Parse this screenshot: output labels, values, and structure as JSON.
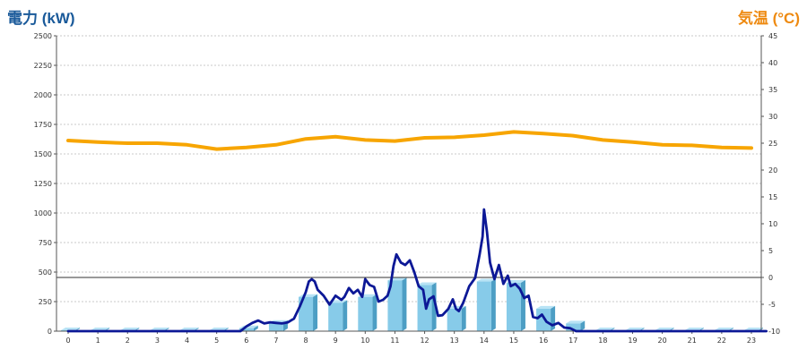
{
  "chart_data": {
    "type": "bar+line",
    "title_left": "電力 (kW)",
    "title_right": "気温 (°C)",
    "colors": {
      "left_title": "#1a5a9a",
      "right_title": "#ee8a11",
      "bar": "#87cbe9",
      "bar_side": "#4d9ec4",
      "bar_top": "#b8e3f5",
      "power_line": "#0c1896",
      "temp_line": "#f7a500",
      "grid": "#c8c8c8"
    },
    "x_ticks": [
      "0",
      "1",
      "2",
      "3",
      "4",
      "5",
      "6",
      "7",
      "8",
      "9",
      "10",
      "11",
      "12",
      "13",
      "14",
      "15",
      "16",
      "17",
      "18",
      "19",
      "20",
      "21",
      "22",
      "23"
    ],
    "y_left": {
      "min": 0,
      "max": 2500,
      "ticks": [
        "0",
        "250",
        "500",
        "750",
        "1000",
        "1250",
        "1500",
        "1750",
        "2000",
        "2250",
        "2500"
      ]
    },
    "y_right": {
      "min": -10,
      "max": 45,
      "ticks": [
        "-10",
        "-5",
        "0",
        "5",
        "10",
        "15",
        "20",
        "25",
        "30",
        "35",
        "40",
        "45"
      ]
    },
    "grid": true,
    "reference_line_temp": 0,
    "bars": {
      "unit": "kW",
      "hours": [
        0,
        1,
        2,
        3,
        4,
        5,
        6,
        7,
        8,
        9,
        10,
        11,
        12,
        13,
        14,
        15,
        16,
        17,
        18,
        19,
        20,
        21,
        22,
        23
      ],
      "values": [
        8,
        8,
        8,
        8,
        8,
        8,
        25,
        70,
        290,
        240,
        290,
        430,
        390,
        190,
        420,
        410,
        190,
        65,
        8,
        8,
        8,
        8,
        8,
        8
      ]
    },
    "power_line": {
      "unit": "kW",
      "points": [
        [
          0,
          0
        ],
        [
          5.8,
          0
        ],
        [
          6.0,
          40
        ],
        [
          6.2,
          70
        ],
        [
          6.4,
          90
        ],
        [
          6.6,
          65
        ],
        [
          6.8,
          75
        ],
        [
          7.0,
          70
        ],
        [
          7.2,
          65
        ],
        [
          7.4,
          75
        ],
        [
          7.6,
          105
        ],
        [
          7.8,
          210
        ],
        [
          8.0,
          330
        ],
        [
          8.1,
          420
        ],
        [
          8.2,
          440
        ],
        [
          8.3,
          420
        ],
        [
          8.4,
          350
        ],
        [
          8.6,
          300
        ],
        [
          8.8,
          225
        ],
        [
          9.0,
          300
        ],
        [
          9.2,
          265
        ],
        [
          9.3,
          290
        ],
        [
          9.45,
          365
        ],
        [
          9.6,
          320
        ],
        [
          9.75,
          350
        ],
        [
          9.9,
          290
        ],
        [
          10.0,
          440
        ],
        [
          10.15,
          390
        ],
        [
          10.3,
          375
        ],
        [
          10.45,
          250
        ],
        [
          10.6,
          265
        ],
        [
          10.75,
          300
        ],
        [
          10.85,
          380
        ],
        [
          10.95,
          550
        ],
        [
          11.05,
          650
        ],
        [
          11.2,
          580
        ],
        [
          11.35,
          560
        ],
        [
          11.5,
          600
        ],
        [
          11.65,
          500
        ],
        [
          11.8,
          380
        ],
        [
          11.95,
          350
        ],
        [
          12.05,
          190
        ],
        [
          12.15,
          270
        ],
        [
          12.3,
          295
        ],
        [
          12.45,
          130
        ],
        [
          12.6,
          135
        ],
        [
          12.8,
          190
        ],
        [
          12.95,
          270
        ],
        [
          13.05,
          190
        ],
        [
          13.15,
          170
        ],
        [
          13.3,
          240
        ],
        [
          13.5,
          380
        ],
        [
          13.7,
          450
        ],
        [
          13.85,
          650
        ],
        [
          13.95,
          800
        ],
        [
          14.0,
          1030
        ],
        [
          14.1,
          840
        ],
        [
          14.2,
          580
        ],
        [
          14.35,
          440
        ],
        [
          14.5,
          560
        ],
        [
          14.65,
          400
        ],
        [
          14.8,
          470
        ],
        [
          14.9,
          380
        ],
        [
          15.05,
          400
        ],
        [
          15.2,
          360
        ],
        [
          15.35,
          280
        ],
        [
          15.5,
          300
        ],
        [
          15.65,
          120
        ],
        [
          15.8,
          110
        ],
        [
          15.95,
          140
        ],
        [
          16.1,
          80
        ],
        [
          16.3,
          50
        ],
        [
          16.5,
          70
        ],
        [
          16.7,
          30
        ],
        [
          16.9,
          25
        ],
        [
          17.1,
          0
        ],
        [
          23.5,
          0
        ]
      ]
    },
    "temperature_line": {
      "unit": "°C",
      "points": [
        [
          0,
          25.5
        ],
        [
          1,
          25.2
        ],
        [
          2,
          25.0
        ],
        [
          3,
          25.0
        ],
        [
          4,
          24.7
        ],
        [
          5,
          23.9
        ],
        [
          6,
          24.2
        ],
        [
          7,
          24.7
        ],
        [
          8,
          25.8
        ],
        [
          9,
          26.2
        ],
        [
          10,
          25.6
        ],
        [
          11,
          25.4
        ],
        [
          12,
          26.0
        ],
        [
          13,
          26.1
        ],
        [
          14,
          26.5
        ],
        [
          15,
          27.1
        ],
        [
          16,
          26.8
        ],
        [
          17,
          26.4
        ],
        [
          18,
          25.6
        ],
        [
          19,
          25.2
        ],
        [
          20,
          24.7
        ],
        [
          21,
          24.6
        ],
        [
          22,
          24.2
        ],
        [
          23,
          24.1
        ]
      ]
    }
  }
}
